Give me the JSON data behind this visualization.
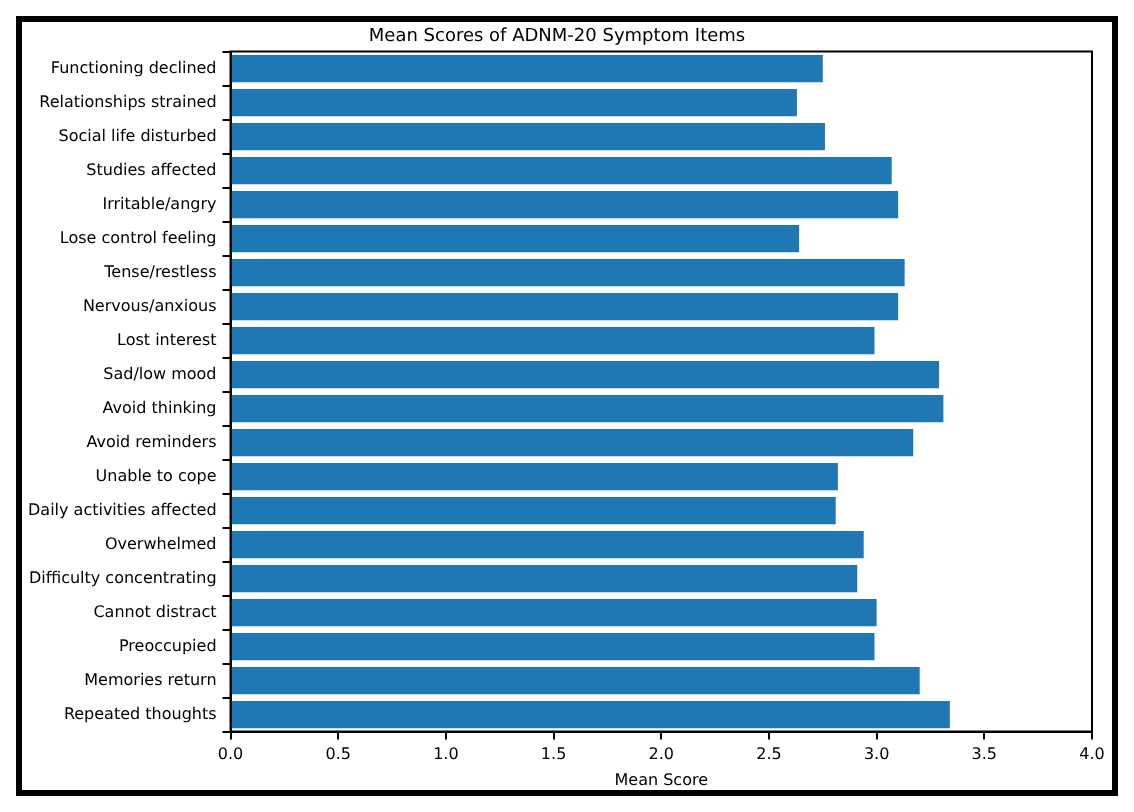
{
  "chart_data": {
    "type": "bar",
    "orientation": "horizontal",
    "title": "Mean Scores of ADNM-20 Symptom Items",
    "xlabel": "Mean Score",
    "categories": [
      "Functioning declined",
      "Relationships strained",
      "Social life disturbed",
      "Studies affected",
      "Irritable/angry",
      "Lose control feeling",
      "Tense/restless",
      "Nervous/anxious",
      "Lost interest",
      "Sad/low mood",
      "Avoid thinking",
      "Avoid reminders",
      "Unable to cope",
      "Daily activities affected",
      "Overwhelmed",
      "Difficulty concentrating",
      "Cannot distract",
      "Preoccupied",
      "Memories return",
      "Repeated thoughts"
    ],
    "values": [
      2.75,
      2.63,
      2.76,
      3.07,
      3.1,
      2.64,
      3.13,
      3.1,
      2.99,
      3.29,
      3.31,
      3.17,
      2.82,
      2.81,
      2.94,
      2.91,
      3.0,
      2.99,
      3.2,
      3.34
    ],
    "color": "#1f77b4",
    "xlim": [
      0,
      4
    ],
    "xticks": [
      {
        "value": 0,
        "label": "0.0"
      },
      {
        "value": 0.5,
        "label": "0.5"
      },
      {
        "value": 1,
        "label": "1.0"
      },
      {
        "value": 1.5,
        "label": "1.5"
      },
      {
        "value": 2,
        "label": "2.0"
      },
      {
        "value": 2.5,
        "label": "2.5"
      },
      {
        "value": 3,
        "label": "3.0"
      },
      {
        "value": 3.5,
        "label": "3.5"
      },
      {
        "value": 4,
        "label": "4.0"
      }
    ],
    "grid": false,
    "legend": false
  }
}
